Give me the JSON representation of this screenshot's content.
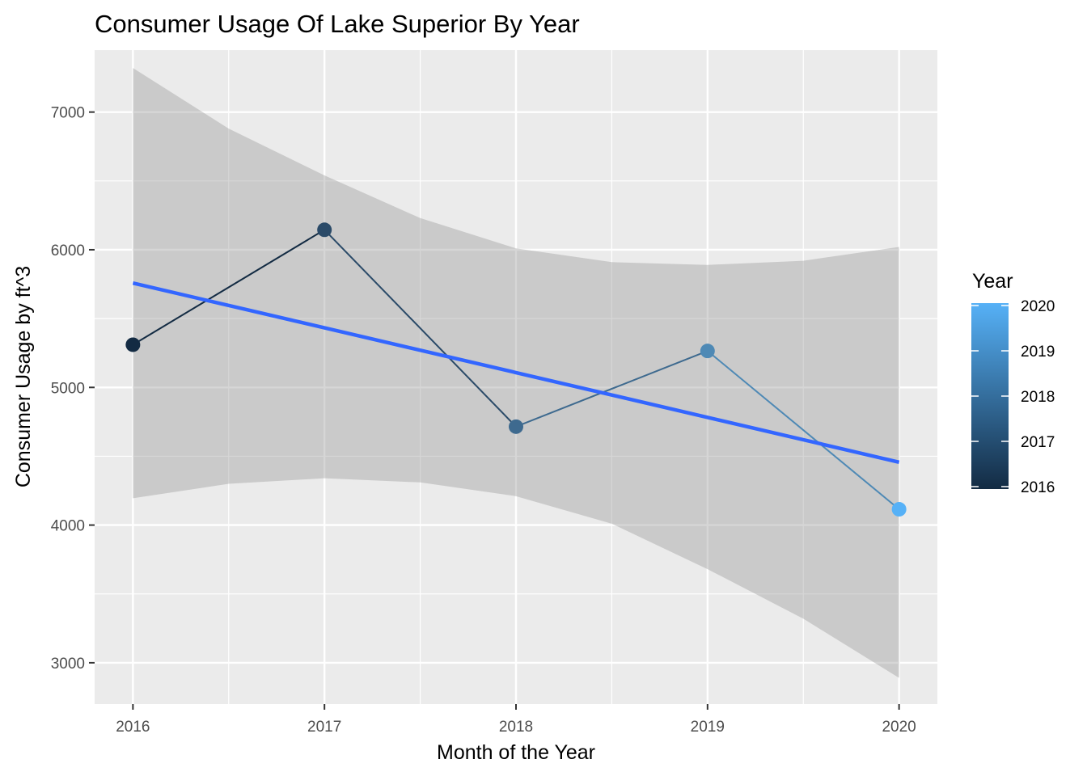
{
  "chart_data": {
    "type": "line",
    "title": "Consumer Usage Of Lake Superior By Year",
    "xlabel": "Month of the Year",
    "ylabel": "Consumer Usage by ft^3",
    "x": [
      2016,
      2017,
      2018,
      2019,
      2020
    ],
    "x_tick_labels": [
      "2016",
      "2017",
      "2018",
      "2019",
      "2020"
    ],
    "y_tick_values": [
      3000,
      4000,
      5000,
      6000,
      7000
    ],
    "y_tick_labels": [
      "3000",
      "4000",
      "5000",
      "6000",
      "7000"
    ],
    "xlim": [
      2015.8,
      2020.2
    ],
    "ylim": [
      2700,
      7450
    ],
    "grid": true,
    "series": [
      {
        "values": [
          5310,
          6145,
          4715,
          5265,
          4115
        ],
        "colors": [
          "#132B43",
          "#2A4A68",
          "#3E6A8F",
          "#4E89B5",
          "#56B1F7"
        ]
      }
    ],
    "trend_line": {
      "type": "linear fit",
      "start": [
        2016,
        5758
      ],
      "end": [
        2020,
        4457
      ],
      "color": "#3366FF"
    },
    "confidence_band": {
      "color": "#999999",
      "x": [
        2016,
        2016.5,
        2017,
        2017.5,
        2018,
        2018.5,
        2019,
        2019.5,
        2020
      ],
      "upper": [
        7320,
        6880,
        6540,
        6230,
        6010,
        5910,
        5890,
        5920,
        6020
      ],
      "lower": [
        4195,
        4300,
        4340,
        4310,
        4210,
        4010,
        3680,
        3320,
        2890
      ]
    },
    "legend": {
      "title": "Year",
      "placement": "right",
      "labels": [
        "2020",
        "2019",
        "2018",
        "2017",
        "2016"
      ],
      "gradient": [
        "#56B1F7",
        "#132B43"
      ]
    }
  }
}
